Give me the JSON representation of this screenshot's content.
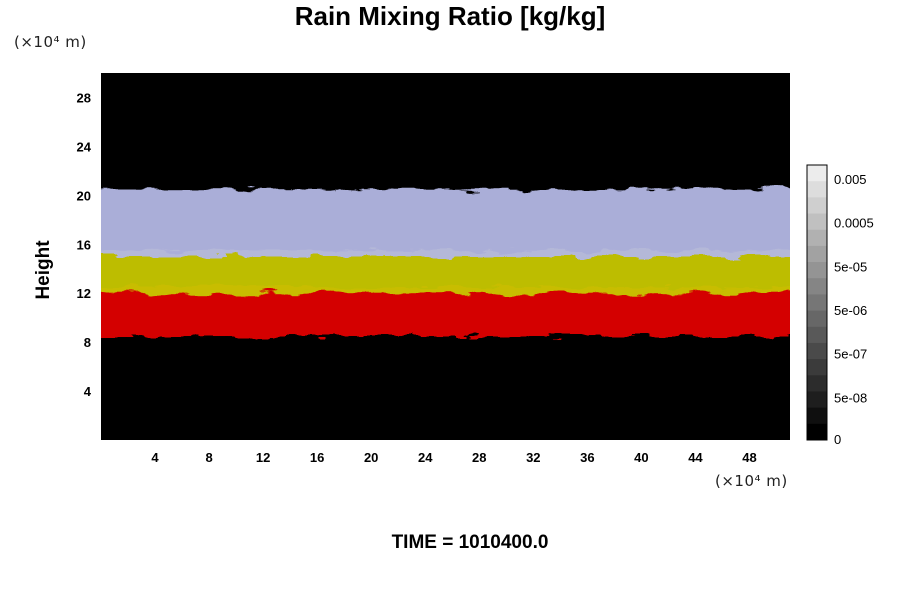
{
  "chart_data": {
    "type": "heatmap",
    "title": "Rain Mixing Ratio [kg/kg]",
    "xlabel": "",
    "ylabel": "Height",
    "x_unit": "(×10⁴ m)",
    "y_unit": "(×10⁴ m)",
    "xlim": [
      0,
      51
    ],
    "ylim": [
      0,
      30
    ],
    "xticks": [
      4,
      8,
      12,
      16,
      20,
      24,
      28,
      32,
      36,
      40,
      44,
      48
    ],
    "yticks": [
      4,
      8,
      12,
      16,
      20,
      24,
      28
    ],
    "layers": [
      {
        "color": "red",
        "hex": "#e00000",
        "y_range": [
          8.5,
          12.5
        ]
      },
      {
        "color": "yellow",
        "hex": "#c8c800",
        "y_range": [
          12,
          15.5
        ]
      },
      {
        "color": "lavender",
        "hex": "#b4b8e4",
        "y_range": [
          15,
          20.5
        ]
      }
    ],
    "colorbar": {
      "levels": 17,
      "tick_labels": [
        "0.005",
        "0.0005",
        "5e-05",
        "5e-06",
        "5e-07",
        "5e-08",
        "0"
      ]
    }
  },
  "footer": {
    "time_label": "TIME = 1010400.0"
  }
}
